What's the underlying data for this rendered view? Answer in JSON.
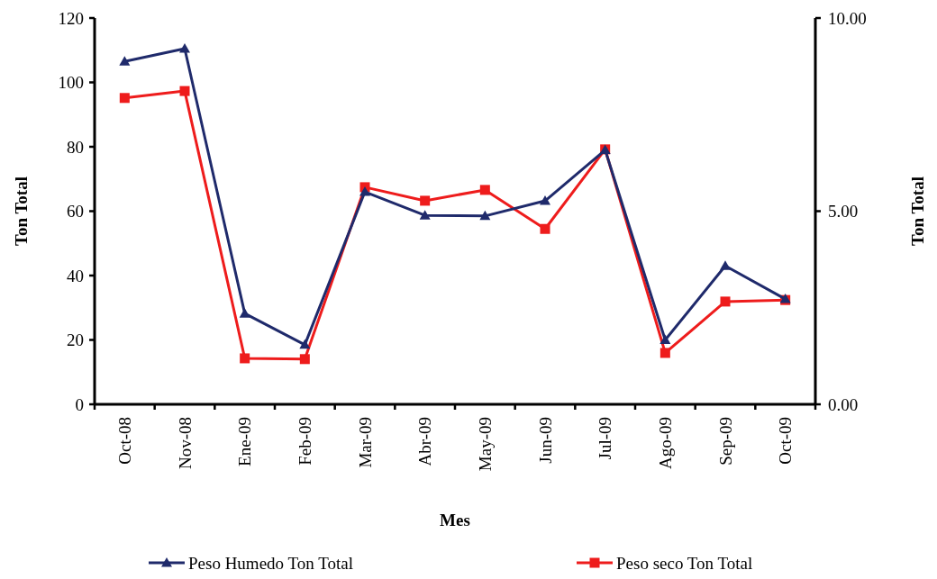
{
  "chart_data": {
    "type": "line",
    "xlabel": "Mes",
    "ylabel": "Ton Total",
    "y2label": "Ton Total",
    "categories": [
      "Oct-08",
      "Nov-08",
      "Ene-09",
      "Feb-09",
      "Mar-09",
      "Abr-09",
      "May-09",
      "Jun-09",
      "Jul-09",
      "Ago-09",
      "Sep-09",
      "Oct-09"
    ],
    "series": [
      {
        "name": "Peso Humedo Ton Total",
        "color": "#1f2a6b",
        "marker": "triangle",
        "values": [
          106.5,
          110.5,
          28.2,
          18.5,
          66,
          58.7,
          58.5,
          63.2,
          79,
          20,
          43,
          32.7
        ]
      },
      {
        "name": "Peso seco Ton Total",
        "color": "#ee1c1c",
        "marker": "square",
        "axis": "y2",
        "values": [
          7.93,
          8.11,
          1.19,
          1.17,
          5.62,
          5.27,
          5.55,
          4.54,
          6.6,
          1.33,
          2.66,
          2.7
        ]
      }
    ],
    "ylim": [
      0,
      120
    ],
    "yticks": [
      0,
      20,
      40,
      60,
      80,
      100,
      120
    ],
    "y2lim": [
      0,
      10
    ],
    "y2ticks": [
      {
        "value": 0,
        "label": "0.00"
      },
      {
        "value": 5,
        "label": "5.00"
      },
      {
        "value": 10,
        "label": "10.00"
      }
    ],
    "grid": false,
    "legend": "bottom"
  }
}
